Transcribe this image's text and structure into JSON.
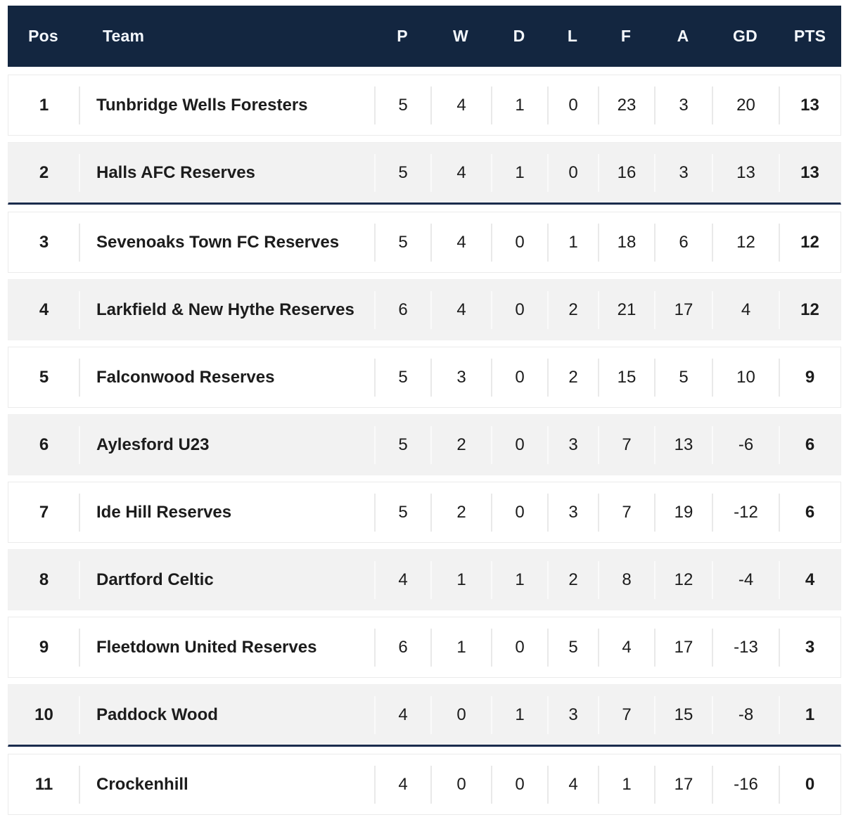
{
  "table": {
    "header": {
      "pos": "Pos",
      "team": "Team",
      "p": "P",
      "w": "W",
      "d": "D",
      "l": "L",
      "f": "F",
      "a": "A",
      "gd": "GD",
      "pts": "PTS"
    },
    "rows": [
      {
        "pos": "1",
        "team": "Tunbridge Wells Foresters",
        "p": "5",
        "w": "4",
        "d": "1",
        "l": "0",
        "f": "23",
        "a": "3",
        "gd": "20",
        "pts": "13",
        "separator_below": false
      },
      {
        "pos": "2",
        "team": "Halls AFC Reserves",
        "p": "5",
        "w": "4",
        "d": "1",
        "l": "0",
        "f": "16",
        "a": "3",
        "gd": "13",
        "pts": "13",
        "separator_below": true
      },
      {
        "pos": "3",
        "team": "Sevenoaks Town FC Reserves",
        "p": "5",
        "w": "4",
        "d": "0",
        "l": "1",
        "f": "18",
        "a": "6",
        "gd": "12",
        "pts": "12",
        "separator_below": false
      },
      {
        "pos": "4",
        "team": "Larkfield & New Hythe Reserves",
        "p": "6",
        "w": "4",
        "d": "0",
        "l": "2",
        "f": "21",
        "a": "17",
        "gd": "4",
        "pts": "12",
        "separator_below": false
      },
      {
        "pos": "5",
        "team": "Falconwood Reserves",
        "p": "5",
        "w": "3",
        "d": "0",
        "l": "2",
        "f": "15",
        "a": "5",
        "gd": "10",
        "pts": "9",
        "separator_below": false
      },
      {
        "pos": "6",
        "team": "Aylesford U23",
        "p": "5",
        "w": "2",
        "d": "0",
        "l": "3",
        "f": "7",
        "a": "13",
        "gd": "-6",
        "pts": "6",
        "separator_below": false
      },
      {
        "pos": "7",
        "team": "Ide Hill Reserves",
        "p": "5",
        "w": "2",
        "d": "0",
        "l": "3",
        "f": "7",
        "a": "19",
        "gd": "-12",
        "pts": "6",
        "separator_below": false
      },
      {
        "pos": "8",
        "team": "Dartford Celtic",
        "p": "4",
        "w": "1",
        "d": "1",
        "l": "2",
        "f": "8",
        "a": "12",
        "gd": "-4",
        "pts": "4",
        "separator_below": false
      },
      {
        "pos": "9",
        "team": "Fleetdown United Reserves",
        "p": "6",
        "w": "1",
        "d": "0",
        "l": "5",
        "f": "4",
        "a": "17",
        "gd": "-13",
        "pts": "3",
        "separator_below": false
      },
      {
        "pos": "10",
        "team": "Paddock Wood",
        "p": "4",
        "w": "0",
        "d": "1",
        "l": "3",
        "f": "7",
        "a": "15",
        "gd": "-8",
        "pts": "1",
        "separator_below": true
      },
      {
        "pos": "11",
        "team": "Crockenhill",
        "p": "4",
        "w": "0",
        "d": "0",
        "l": "4",
        "f": "1",
        "a": "17",
        "gd": "-16",
        "pts": "0",
        "separator_below": false
      }
    ]
  },
  "colors": {
    "header_bg": "#132640",
    "header_text": "#f3f7fc",
    "separator_line": "#1b2c4d",
    "row_bg": "#ffffff",
    "row_alt_bg": "#f2f2f2",
    "row_border": "#ebebeb",
    "divider": "#e9e9e9",
    "divider_alt": "#fafafa",
    "text": "#1c1c1c",
    "page_bg": "#ffffff"
  }
}
